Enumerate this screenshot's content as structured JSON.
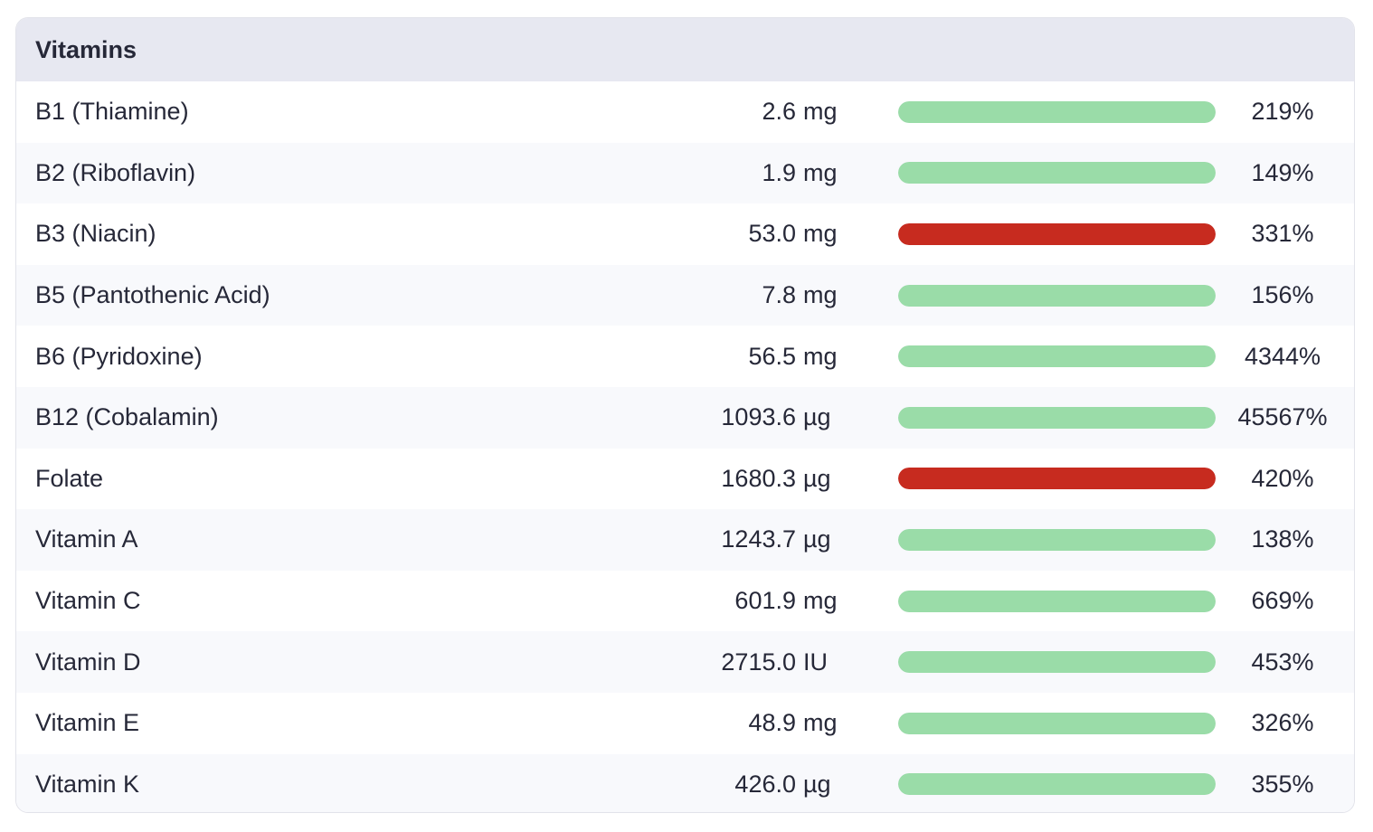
{
  "panel": {
    "title": "Vitamins"
  },
  "colors": {
    "ok": "#9adca8",
    "excess": "#c72b1f"
  },
  "rows": [
    {
      "name": "B1 (Thiamine)",
      "value": "2.6",
      "unit": "mg",
      "percent": "219%",
      "status": "ok"
    },
    {
      "name": "B2 (Riboflavin)",
      "value": "1.9",
      "unit": "mg",
      "percent": "149%",
      "status": "ok"
    },
    {
      "name": "B3 (Niacin)",
      "value": "53.0",
      "unit": "mg",
      "percent": "331%",
      "status": "excess"
    },
    {
      "name": "B5 (Pantothenic Acid)",
      "value": "7.8",
      "unit": "mg",
      "percent": "156%",
      "status": "ok"
    },
    {
      "name": "B6 (Pyridoxine)",
      "value": "56.5",
      "unit": "mg",
      "percent": "4344%",
      "status": "ok"
    },
    {
      "name": "B12 (Cobalamin)",
      "value": "1093.6",
      "unit": "µg",
      "percent": "45567%",
      "status": "ok"
    },
    {
      "name": "Folate",
      "value": "1680.3",
      "unit": "µg",
      "percent": "420%",
      "status": "excess"
    },
    {
      "name": "Vitamin A",
      "value": "1243.7",
      "unit": "µg",
      "percent": "138%",
      "status": "ok"
    },
    {
      "name": "Vitamin C",
      "value": "601.9",
      "unit": "mg",
      "percent": "669%",
      "status": "ok"
    },
    {
      "name": "Vitamin D",
      "value": "2715.0",
      "unit": "IU",
      "percent": "453%",
      "status": "ok"
    },
    {
      "name": "Vitamin E",
      "value": "48.9",
      "unit": "mg",
      "percent": "326%",
      "status": "ok"
    },
    {
      "name": "Vitamin K",
      "value": "426.0",
      "unit": "µg",
      "percent": "355%",
      "status": "ok"
    }
  ]
}
